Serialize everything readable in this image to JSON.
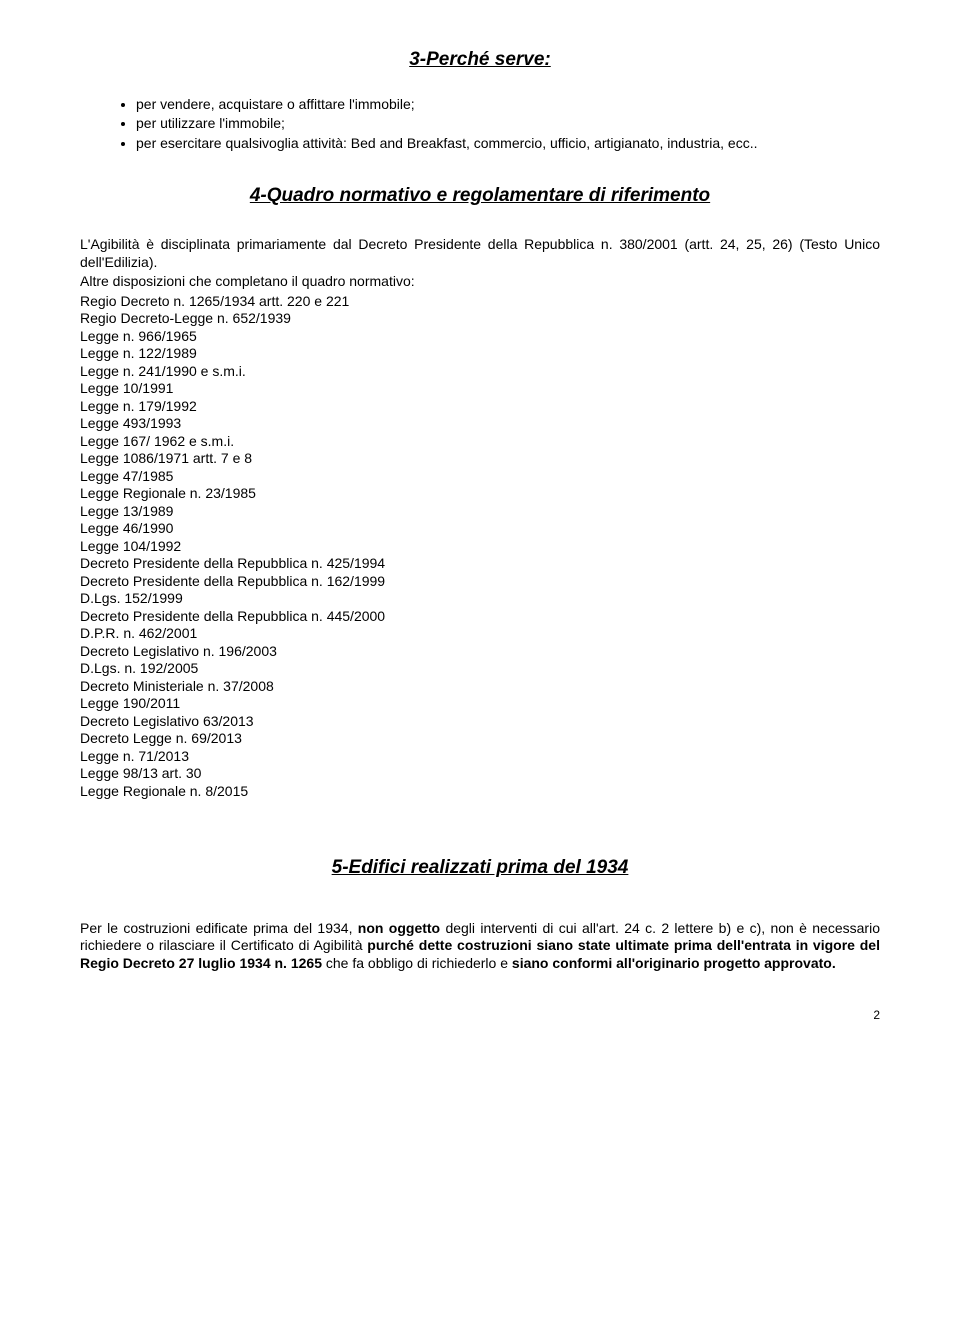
{
  "section3": {
    "heading": "3-Perché serve:",
    "bullets": [
      "per vendere, acquistare o affittare l'immobile;",
      "per utilizzare l'immobile;",
      "per esercitare qualsivoglia attività: Bed and Breakfast, commercio, ufficio, artigianato, industria, ecc.."
    ]
  },
  "section4": {
    "heading": "4-Quadro normativo e regolamentare di riferimento",
    "intro": "L'Agibilità è disciplinata primariamente dal Decreto Presidente della Repubblica n. 380/2001 (artt. 24, 25, 26) (Testo Unico dell'Edilizia).",
    "intro2": "Altre disposizioni che completano il quadro normativo:",
    "laws": [
      "Regio Decreto n. 1265/1934 artt. 220 e 221",
      "Regio Decreto-Legge n. 652/1939",
      "Legge n. 966/1965",
      "Legge n. 122/1989",
      "Legge n. 241/1990 e s.m.i.",
      "Legge 10/1991",
      "Legge n. 179/1992",
      "Legge 493/1993",
      "Legge 167/ 1962 e s.m.i.",
      "Legge 1086/1971 artt. 7 e 8",
      "Legge 47/1985",
      "Legge Regionale n. 23/1985",
      "Legge 13/1989",
      "Legge 46/1990",
      "Legge 104/1992",
      "Decreto Presidente della Repubblica n. 425/1994",
      "Decreto Presidente della Repubblica n. 162/1999",
      "D.Lgs. 152/1999",
      "Decreto Presidente della Repubblica n. 445/2000",
      "D.P.R. n. 462/2001",
      "Decreto Legislativo n. 196/2003",
      "D.Lgs. n. 192/2005",
      "Decreto Ministeriale n. 37/2008",
      "Legge 190/2011",
      "Decreto Legislativo 63/2013",
      "Decreto Legge n. 69/2013",
      "Legge n. 71/2013",
      "Legge 98/13 art. 30",
      "Legge Regionale n. 8/2015"
    ]
  },
  "section5": {
    "heading": "5-Edifici realizzati prima del 1934",
    "p1a": "Per le costruzioni edificate prima del 1934, ",
    "p1b": "non oggetto",
    "p1c": " degli interventi di cui all'art. 24 c. 2 lettere b) e c), non è necessario richiedere o rilasciare il Certificato di Agibilità ",
    "p1d": "purché dette costruzioni siano state ultimate prima dell'entrata in vigore del Regio Decreto 27 luglio 1934 n. 1265",
    "p1e": " che fa obbligo di richiederlo e ",
    "p1f": "siano conformi all'originario progetto approvato."
  },
  "pageNumber": "2"
}
